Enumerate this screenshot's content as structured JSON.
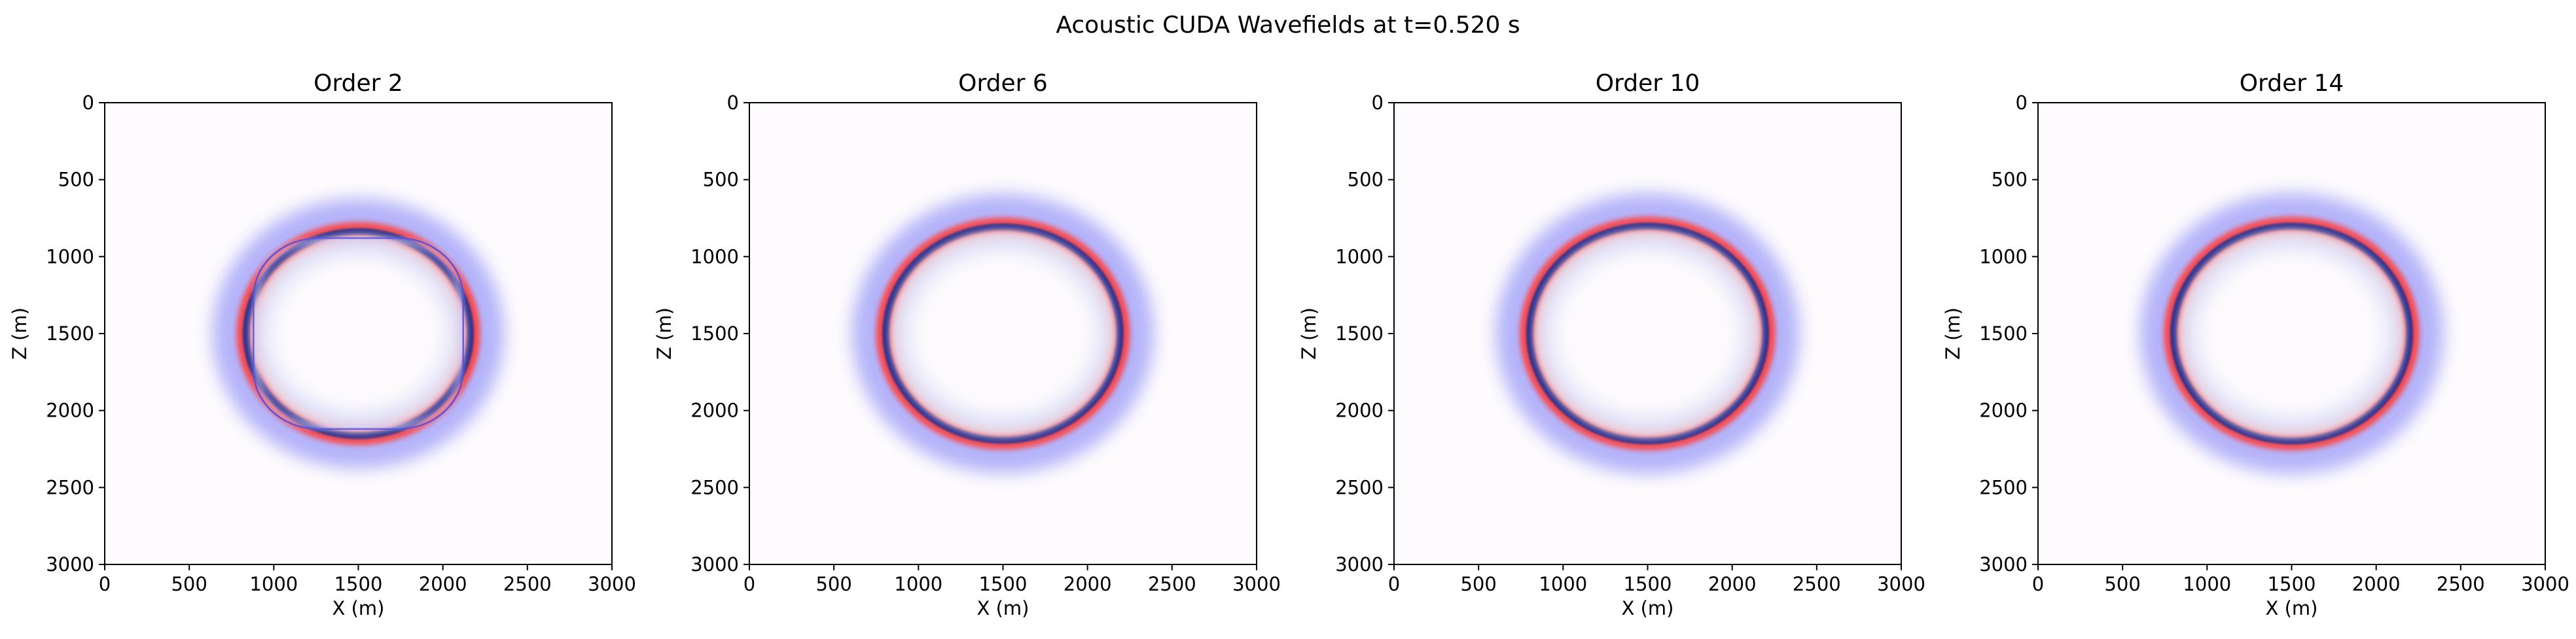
{
  "figure": {
    "suptitle": "Acoustic CUDA Wavefields at t=0.520 s"
  },
  "chart_data": [
    {
      "type": "heatmap",
      "title": "Order 2",
      "xlabel": "X (m)",
      "ylabel": "Z (m)",
      "xlim": [
        0,
        3000
      ],
      "ylim": [
        3000,
        0
      ],
      "x_ticks": [
        0,
        500,
        1000,
        1500,
        2000,
        2500,
        3000
      ],
      "y_ticks": [
        0,
        500,
        1000,
        1500,
        2000,
        2500,
        3000
      ],
      "colormap": "seismic (blue-white-red)",
      "source_location": [
        1500,
        1500
      ],
      "wavefront_radius": 680,
      "dispersion_artifact": true,
      "inner_ring": "blue, rounded-square shape, radius ~630"
    },
    {
      "type": "heatmap",
      "title": "Order 6",
      "xlabel": "X (m)",
      "ylabel": "Z (m)",
      "xlim": [
        0,
        3000
      ],
      "ylim": [
        3000,
        0
      ],
      "x_ticks": [
        0,
        500,
        1000,
        1500,
        2000,
        2500,
        3000
      ],
      "y_ticks": [
        0,
        500,
        1000,
        1500,
        2000,
        2500,
        3000
      ],
      "colormap": "seismic (blue-white-red)",
      "source_location": [
        1500,
        1500
      ],
      "wavefront_radius": 710,
      "dispersion_artifact": false
    },
    {
      "type": "heatmap",
      "title": "Order 10",
      "xlabel": "X (m)",
      "ylabel": "Z (m)",
      "xlim": [
        0,
        3000
      ],
      "ylim": [
        3000,
        0
      ],
      "x_ticks": [
        0,
        500,
        1000,
        1500,
        2000,
        2500,
        3000
      ],
      "y_ticks": [
        0,
        500,
        1000,
        1500,
        2000,
        2500,
        3000
      ],
      "colormap": "seismic (blue-white-red)",
      "source_location": [
        1500,
        1500
      ],
      "wavefront_radius": 715,
      "dispersion_artifact": false
    },
    {
      "type": "heatmap",
      "title": "Order 14",
      "xlabel": "X (m)",
      "ylabel": "Z (m)",
      "xlim": [
        0,
        3000
      ],
      "ylim": [
        3000,
        0
      ],
      "x_ticks": [
        0,
        500,
        1000,
        1500,
        2000,
        2500,
        3000
      ],
      "y_ticks": [
        0,
        500,
        1000,
        1500,
        2000,
        2500,
        3000
      ],
      "colormap": "seismic (blue-white-red)",
      "source_location": [
        1500,
        1500
      ],
      "wavefront_radius": 715,
      "dispersion_artifact": false
    }
  ]
}
